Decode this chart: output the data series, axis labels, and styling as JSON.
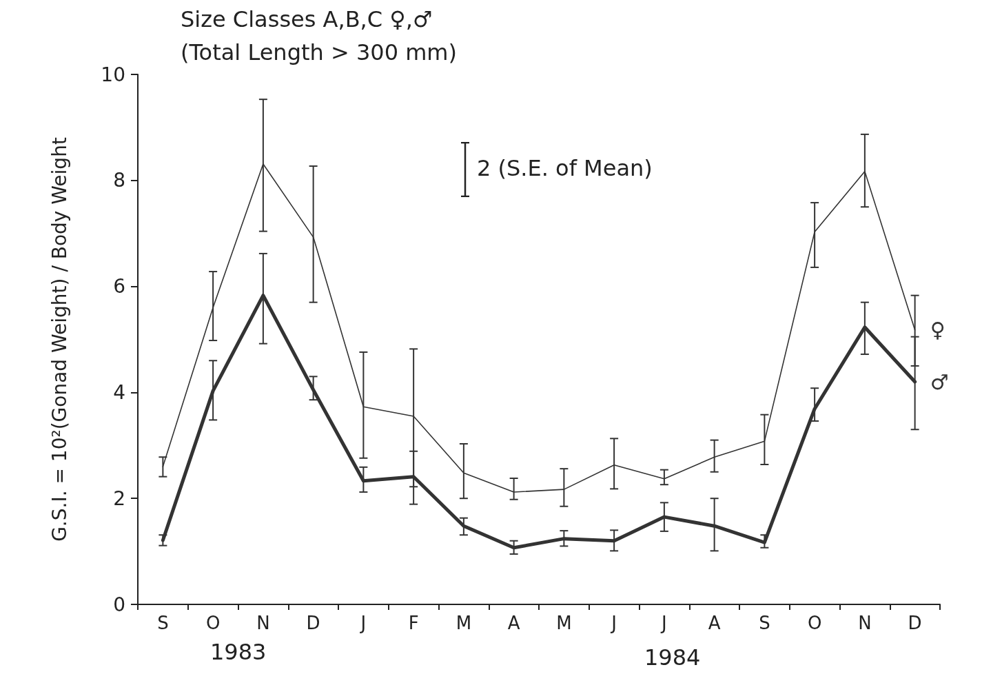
{
  "chart_data": {
    "type": "line",
    "title": "Size Classes A,B,C ♀,♂",
    "subtitle": "(Total Length > 300 mm)",
    "ylabel": "G.S.I. = 10²(Gonad Weight) / Body Weight",
    "categories": [
      "S",
      "O",
      "N",
      "D",
      "J",
      "F",
      "M",
      "A",
      "M",
      "J",
      "J",
      "A",
      "S",
      "O",
      "N",
      "D"
    ],
    "series": [
      {
        "name": "♀",
        "color": "#333333",
        "values": [
          2.6,
          5.6,
          8.31,
          6.93,
          3.73,
          3.55,
          2.48,
          2.12,
          2.17,
          2.63,
          2.37,
          2.78,
          3.08,
          7.03,
          8.17,
          5.18
        ],
        "errors": [
          [
            2.41,
            2.78
          ],
          [
            4.98,
            6.28
          ],
          [
            7.04,
            9.53
          ],
          [
            5.7,
            8.27
          ],
          [
            2.76,
            4.76
          ],
          [
            2.22,
            4.82
          ],
          [
            2.0,
            3.03
          ],
          [
            1.98,
            2.38
          ],
          [
            1.85,
            2.56
          ],
          [
            2.18,
            3.13
          ],
          [
            2.26,
            2.54
          ],
          [
            2.5,
            3.1
          ],
          [
            2.64,
            3.58
          ],
          [
            6.36,
            7.58
          ],
          [
            7.5,
            8.87
          ],
          [
            4.5,
            5.83
          ]
        ]
      },
      {
        "name": "♂",
        "color": "#333333",
        "values": [
          1.21,
          4.03,
          5.83,
          4.05,
          2.33,
          2.41,
          1.48,
          1.07,
          1.24,
          1.2,
          1.65,
          1.48,
          1.17,
          3.69,
          5.23,
          4.2
        ],
        "errors": [
          [
            1.11,
            1.31
          ],
          [
            3.48,
            4.6
          ],
          [
            4.92,
            6.62
          ],
          [
            3.86,
            4.3
          ],
          [
            2.12,
            2.59
          ],
          [
            1.89,
            2.89
          ],
          [
            1.31,
            1.63
          ],
          [
            0.95,
            1.2
          ],
          [
            1.1,
            1.39
          ],
          [
            1.01,
            1.4
          ],
          [
            1.38,
            1.92
          ],
          [
            1.01,
            2.0
          ],
          [
            1.07,
            1.31
          ],
          [
            3.46,
            4.08
          ],
          [
            4.72,
            5.7
          ],
          [
            3.3,
            5.05
          ]
        ]
      }
    ],
    "annotations": [
      "2 (S.E. of Mean)",
      "1983",
      "1984"
    ],
    "ylim": [
      0,
      10
    ],
    "yticks": [
      0,
      2,
      4,
      6,
      8,
      10
    ],
    "grid": false,
    "legend": false,
    "marker": "none",
    "line_style": "solid"
  }
}
